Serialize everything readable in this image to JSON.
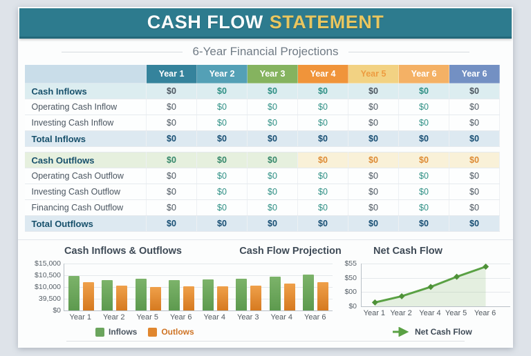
{
  "header": {
    "title_main": "CASH FLOW",
    "title_accent": "STATEMENT",
    "subtitle": "6-Year Financial Projections",
    "banner_color": "#2d7b8e",
    "accent_color": "#e9c65f"
  },
  "table": {
    "columns": [
      {
        "label": "Year 1",
        "header_bg": "#35839c",
        "header_text": "#ffffff",
        "value_color": "#4d5761"
      },
      {
        "label": "Year 2",
        "header_bg": "#54a0b6",
        "header_text": "#ffffff",
        "value_color": "#2e8f84"
      },
      {
        "label": "Year 3",
        "header_bg": "#85b35f",
        "header_text": "#ffffff",
        "value_color": "#2e8f84"
      },
      {
        "label": "Year 4",
        "header_bg": "#f0943a",
        "header_text": "#ffffff",
        "value_color": "#2e8f84"
      },
      {
        "label": "Year 5",
        "header_bg": "#f2d283",
        "header_text": "#ed9c40",
        "value_color": "#4d5761"
      },
      {
        "label": "Year 6",
        "header_bg": "#f4b165",
        "header_text": "#ffffff",
        "value_color": "#2e8f84"
      },
      {
        "label": "Year 6",
        "header_bg": "#7390c3",
        "header_text": "#ffffff",
        "value_color": "#4d5761"
      }
    ],
    "outflow_section_style": {
      "bg_left": "#e6f0de",
      "bg_right": "#f9f1d8",
      "value_left": "#35876a",
      "value_right": "#dd8a33"
    },
    "total_value_color": "#174e73",
    "rows": [
      {
        "label": "Cash Inflows",
        "type": "section_inflow",
        "values": [
          "$0",
          "$0",
          "$0",
          "$0",
          "$0",
          "$0",
          "$0"
        ]
      },
      {
        "label": "Operating Cash Inflow",
        "type": "data",
        "values": [
          "$0",
          "$0",
          "$0",
          "$0",
          "$0",
          "$0",
          "$0"
        ]
      },
      {
        "label": "Investing Cash Inflow",
        "type": "data",
        "values": [
          "$0",
          "$0",
          "$0",
          "$0",
          "$0",
          "$0",
          "$0"
        ]
      },
      {
        "label": "Total Inflows",
        "type": "total",
        "values": [
          "$0",
          "$0",
          "$0",
          "$0",
          "$0",
          "$0",
          "$0"
        ]
      },
      {
        "label": "",
        "type": "spacer",
        "values": [
          "",
          "",
          "",
          "",
          "",
          "",
          ""
        ]
      },
      {
        "label": "Cash Outflows",
        "type": "section_outflow",
        "values": [
          "$0",
          "$0",
          "$0",
          "$0",
          "$0",
          "$0",
          "$0"
        ]
      },
      {
        "label": "Operating Cash Outflow",
        "type": "data",
        "values": [
          "$0",
          "$0",
          "$0",
          "$0",
          "$0",
          "$0",
          "$0"
        ]
      },
      {
        "label": "Investing Cash Outflow",
        "type": "data",
        "values": [
          "$0",
          "$0",
          "$0",
          "$0",
          "$0",
          "$0",
          "$0"
        ]
      },
      {
        "label": "Financing Cash Outflow",
        "type": "data",
        "values": [
          "$0",
          "$0",
          "$0",
          "$0",
          "$0",
          "$0",
          "$0"
        ]
      },
      {
        "label": "Total Outflows",
        "type": "total",
        "values": [
          "$0",
          "$0",
          "$0",
          "$0",
          "$0",
          "$0",
          "$0"
        ]
      }
    ]
  },
  "charts": {
    "secondary_title": "Cash Flow Projection"
  },
  "chart_data": [
    {
      "type": "bar",
      "title": "Cash Inflows & Outflows",
      "categories": [
        "Year 1",
        "Year 2",
        "Year 5",
        "Year 6",
        "Year 4",
        "Year 3",
        "Year 4",
        "Year 6"
      ],
      "series": [
        {
          "name": "Inflows",
          "color": "#6ba55d",
          "values": [
            11000,
            9800,
            10100,
            9600,
            9900,
            10100,
            10800,
            11400
          ]
        },
        {
          "name": "Outlows",
          "color": "#e0872f",
          "values": [
            9000,
            7900,
            7600,
            7700,
            7800,
            7900,
            8700,
            9000
          ]
        }
      ],
      "ytick_labels": [
        "$15,000",
        "$10,500",
        "$10,000",
        "39,500",
        "$0"
      ],
      "ylim": [
        0,
        15000
      ],
      "grid": true,
      "legend_position": "bottom",
      "legend_text_colors": [
        "#4a5560",
        "#cf7425"
      ]
    },
    {
      "type": "line",
      "title": "Net Cash Flow",
      "categories": [
        "Year 1",
        "Year 2",
        "Year 4",
        "Year 5",
        "Year 6"
      ],
      "series": [
        {
          "name": "Net Cash Flow",
          "color": "#5aa144",
          "values": [
            5,
            13,
            25,
            38,
            51
          ]
        }
      ],
      "ytick_labels": [
        "$55",
        "$50",
        "$00",
        "$0"
      ],
      "ylim": [
        0,
        55
      ],
      "area_fill": true,
      "grid": true,
      "legend_position": "bottom"
    }
  ]
}
